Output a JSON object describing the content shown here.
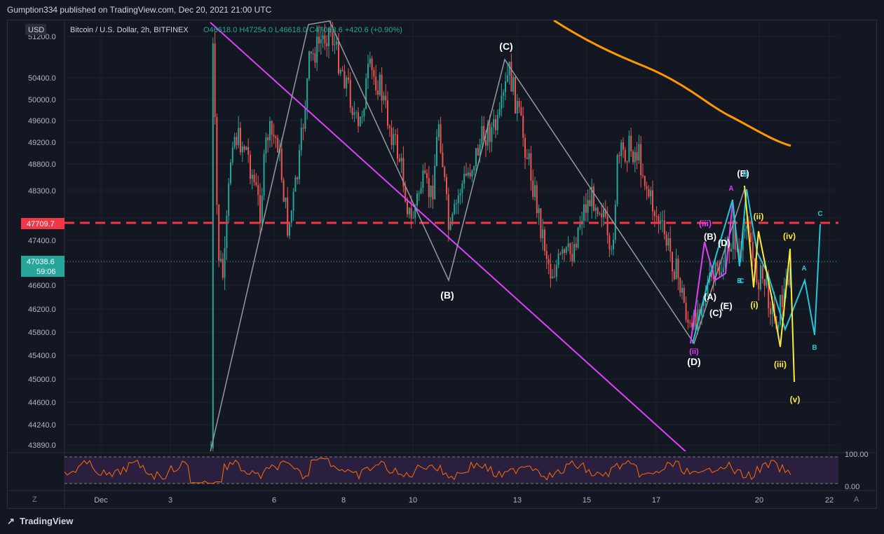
{
  "header": {
    "published_by": "Gumption334 published on TradingView.com, Dec 20, 2021 21:00 UTC"
  },
  "legend": {
    "currency_badge": "USD",
    "symbol": "Bitcoin / U.S. Dollar, 2h, BITFINEX",
    "ohlc": "O46618.0  H47254.0  L46618.0  C47038.6  +420.6 (+0.90%)"
  },
  "price_tags": {
    "level": "47709.7",
    "last": "47038.6",
    "countdown": "59:06"
  },
  "footer": {
    "brand": "TradingView"
  },
  "chart_data": {
    "type": "candlestick",
    "y_ticks": [
      "51200.0",
      "50400.0",
      "50000.0",
      "49600.0",
      "49200.0",
      "48800.0",
      "48300.0",
      "47800.0",
      "47400.0",
      "47000.0",
      "46600.0",
      "46200.0",
      "45800.0",
      "45400.0",
      "45000.0",
      "44600.0",
      "44240.0",
      "43890.0"
    ],
    "x_ticks": [
      "Dec",
      "3",
      "6",
      "8",
      "10",
      "13",
      "15",
      "17",
      "20",
      "22"
    ],
    "horizontal_level": 47709.7,
    "rsi_ticks": [
      "100.00",
      "0.00"
    ],
    "scale_buttons": [
      "Z",
      "A"
    ],
    "wave_labels": [
      "(B)",
      "(C)",
      "(D)",
      "(A)",
      "(B)",
      "(C)",
      "(D)",
      "(E)",
      "(E)",
      "(iii)",
      "(ii)",
      "(ii)",
      "(iv)",
      "(i)",
      "(iii)",
      "(v)",
      "A",
      "B",
      "C",
      "B",
      "A",
      "B",
      "C"
    ]
  },
  "colors": {
    "bg": "#131722",
    "up": "#26a69a",
    "down": "#ef5350",
    "level": "#f23645",
    "ma": "#ff9800",
    "trend": "#e040fb",
    "wave_white": "#9598a1",
    "wave_cyan": "#26c6da",
    "wave_yellow": "#ffeb3b",
    "rsi": "#ff6d00"
  }
}
